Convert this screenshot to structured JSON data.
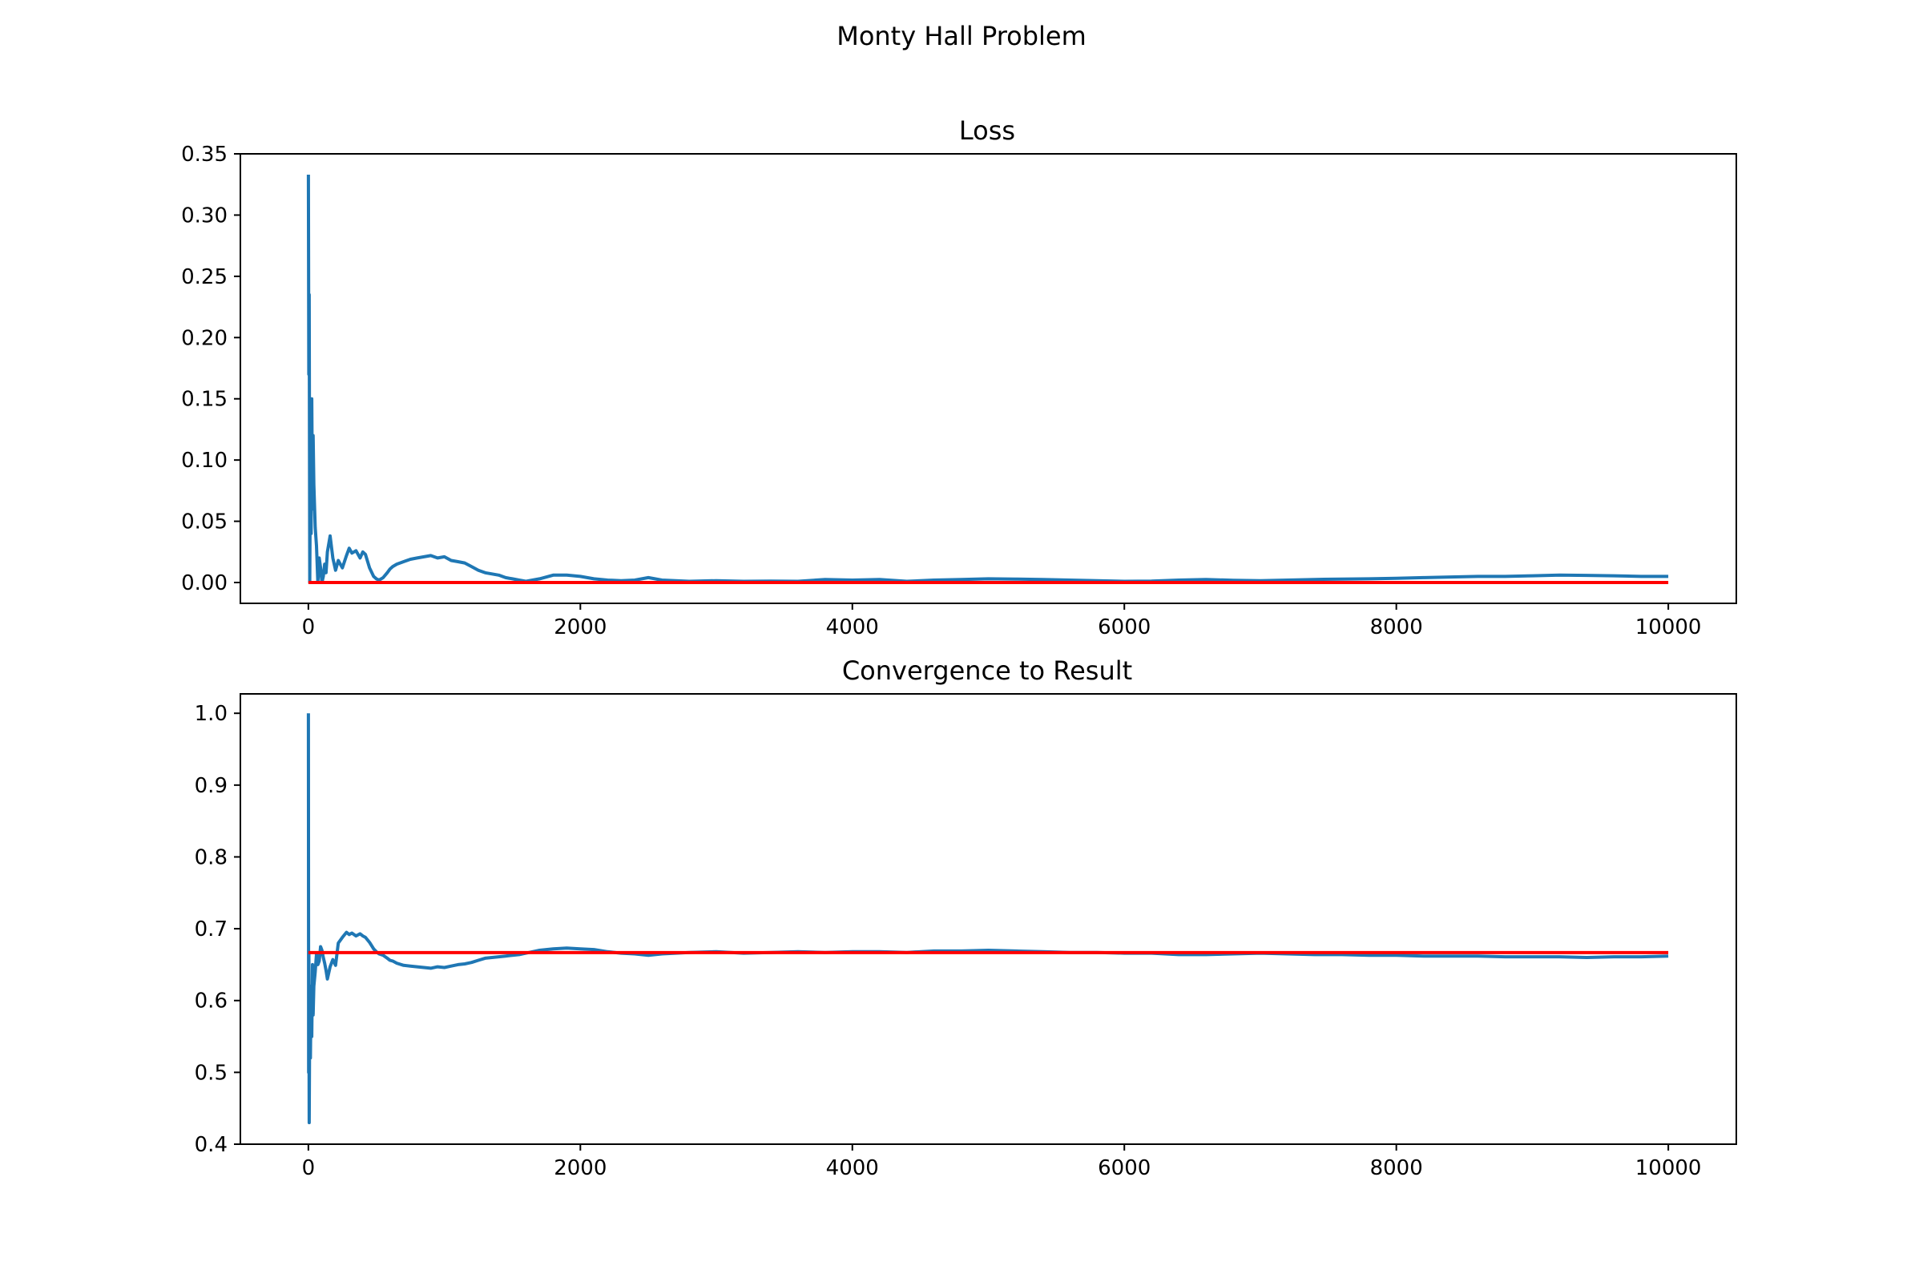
{
  "figure": {
    "title": "Monty Hall Problem"
  },
  "chart_data": [
    {
      "type": "line",
      "title": "Loss",
      "xlabel": "",
      "ylabel": "",
      "xlim": [
        -500,
        10500
      ],
      "ylim": [
        -0.017,
        0.35
      ],
      "xticks": [
        0,
        2000,
        4000,
        6000,
        8000,
        10000
      ],
      "xtick_labels": [
        "0",
        "2000",
        "4000",
        "6000",
        "8000",
        "10000"
      ],
      "yticks": [
        0.0,
        0.05,
        0.1,
        0.15,
        0.2,
        0.25,
        0.3,
        0.35
      ],
      "ytick_labels": [
        "0.00",
        "0.05",
        "0.10",
        "0.15",
        "0.20",
        "0.25",
        "0.30",
        "0.35"
      ],
      "grid": false,
      "legend": "none",
      "series": [
        {
          "color": "#1f77b4",
          "x": [
            0,
            3,
            6,
            10,
            15,
            20,
            25,
            30,
            35,
            40,
            50,
            60,
            70,
            80,
            90,
            100,
            110,
            120,
            130,
            140,
            160,
            180,
            200,
            220,
            250,
            280,
            300,
            320,
            350,
            380,
            400,
            420,
            450,
            480,
            500,
            520,
            550,
            580,
            600,
            620,
            650,
            700,
            750,
            800,
            850,
            900,
            950,
            1000,
            1050,
            1100,
            1150,
            1200,
            1250,
            1300,
            1350,
            1400,
            1450,
            1500,
            1550,
            1600,
            1700,
            1800,
            1900,
            2000,
            2100,
            2200,
            2300,
            2400,
            2500,
            2600,
            2800,
            3000,
            3200,
            3400,
            3600,
            3800,
            4000,
            4200,
            4400,
            4600,
            4800,
            5000,
            5200,
            5400,
            5600,
            5800,
            6000,
            6200,
            6400,
            6600,
            6800,
            7000,
            7200,
            7400,
            7600,
            7800,
            8000,
            8200,
            8400,
            8600,
            8800,
            9000,
            9200,
            9400,
            9600,
            9800,
            10000
          ],
          "y": [
            0.333,
            0.17,
            0.235,
            0.0,
            0.1,
            0.04,
            0.15,
            0.06,
            0.12,
            0.08,
            0.045,
            0.03,
            0.0,
            0.02,
            0.012,
            0.0,
            0.005,
            0.015,
            0.008,
            0.025,
            0.038,
            0.02,
            0.01,
            0.018,
            0.012,
            0.022,
            0.028,
            0.024,
            0.026,
            0.02,
            0.025,
            0.023,
            0.012,
            0.005,
            0.003,
            0.002,
            0.004,
            0.008,
            0.011,
            0.013,
            0.015,
            0.017,
            0.019,
            0.02,
            0.021,
            0.022,
            0.02,
            0.021,
            0.018,
            0.017,
            0.016,
            0.013,
            0.01,
            0.008,
            0.007,
            0.006,
            0.004,
            0.003,
            0.002,
            0.001,
            0.003,
            0.006,
            0.006,
            0.005,
            0.003,
            0.002,
            0.0015,
            0.002,
            0.004,
            0.002,
            0.001,
            0.0015,
            0.001,
            0.0012,
            0.001,
            0.0025,
            0.002,
            0.0025,
            0.001,
            0.002,
            0.0025,
            0.003,
            0.0028,
            0.0025,
            0.002,
            0.0015,
            0.001,
            0.0012,
            0.002,
            0.0025,
            0.0018,
            0.0015,
            0.002,
            0.0025,
            0.0028,
            0.003,
            0.0035,
            0.004,
            0.0045,
            0.005,
            0.005,
            0.0055,
            0.006,
            0.0058,
            0.0055,
            0.005,
            0.005
          ]
        },
        {
          "color": "#ff0000",
          "x": [
            0,
            10000
          ],
          "y": [
            0.0,
            0.0
          ]
        }
      ]
    },
    {
      "type": "line",
      "title": "Convergence to Result",
      "xlabel": "",
      "ylabel": "",
      "xlim": [
        -500,
        10500
      ],
      "ylim": [
        0.4,
        1.027
      ],
      "xticks": [
        0,
        2000,
        4000,
        6000,
        8000,
        10000
      ],
      "xtick_labels": [
        "0",
        "2000",
        "4000",
        "6000",
        "8000",
        "10000"
      ],
      "yticks": [
        0.4,
        0.5,
        0.6,
        0.7,
        0.8,
        0.9,
        1.0
      ],
      "ytick_labels": [
        "0.4",
        "0.5",
        "0.6",
        "0.7",
        "0.8",
        "0.9",
        "1.0"
      ],
      "grid": false,
      "legend": "none",
      "series": [
        {
          "color": "#1f77b4",
          "x": [
            0,
            2,
            4,
            6,
            10,
            15,
            20,
            25,
            30,
            35,
            40,
            50,
            60,
            70,
            80,
            90,
            100,
            110,
            120,
            130,
            140,
            160,
            180,
            200,
            220,
            250,
            280,
            300,
            320,
            350,
            380,
            400,
            420,
            450,
            480,
            500,
            520,
            550,
            580,
            600,
            620,
            650,
            700,
            750,
            800,
            850,
            900,
            950,
            1000,
            1050,
            1100,
            1150,
            1200,
            1250,
            1300,
            1350,
            1400,
            1450,
            1500,
            1550,
            1600,
            1700,
            1800,
            1900,
            2000,
            2100,
            2200,
            2300,
            2400,
            2500,
            2600,
            2800,
            3000,
            3200,
            3400,
            3600,
            3800,
            4000,
            4200,
            4400,
            4600,
            4800,
            5000,
            5200,
            5400,
            5600,
            5800,
            6000,
            6200,
            6400,
            6600,
            6800,
            7000,
            7200,
            7400,
            7600,
            7800,
            8000,
            8200,
            8400,
            8600,
            8800,
            9000,
            9200,
            9400,
            9600,
            9800,
            10000
          ],
          "y": [
            1.0,
            0.5,
            0.667,
            0.43,
            0.6,
            0.52,
            0.62,
            0.55,
            0.65,
            0.58,
            0.62,
            0.64,
            0.665,
            0.65,
            0.655,
            0.675,
            0.67,
            0.66,
            0.652,
            0.642,
            0.63,
            0.647,
            0.657,
            0.649,
            0.68,
            0.688,
            0.695,
            0.692,
            0.694,
            0.69,
            0.693,
            0.69,
            0.688,
            0.681,
            0.672,
            0.668,
            0.665,
            0.663,
            0.659,
            0.656,
            0.655,
            0.652,
            0.649,
            0.648,
            0.647,
            0.646,
            0.645,
            0.647,
            0.646,
            0.648,
            0.65,
            0.651,
            0.653,
            0.656,
            0.659,
            0.66,
            0.661,
            0.662,
            0.663,
            0.664,
            0.666,
            0.67,
            0.672,
            0.673,
            0.672,
            0.671,
            0.668,
            0.666,
            0.665,
            0.663,
            0.665,
            0.667,
            0.668,
            0.666,
            0.667,
            0.668,
            0.667,
            0.668,
            0.668,
            0.667,
            0.669,
            0.669,
            0.67,
            0.669,
            0.668,
            0.667,
            0.667,
            0.666,
            0.666,
            0.664,
            0.664,
            0.665,
            0.666,
            0.665,
            0.664,
            0.664,
            0.663,
            0.663,
            0.662,
            0.662,
            0.662,
            0.661,
            0.661,
            0.661,
            0.66,
            0.661,
            0.661,
            0.662
          ]
        },
        {
          "color": "#ff0000",
          "x": [
            0,
            10000
          ],
          "y": [
            0.6667,
            0.6667
          ]
        }
      ]
    }
  ]
}
